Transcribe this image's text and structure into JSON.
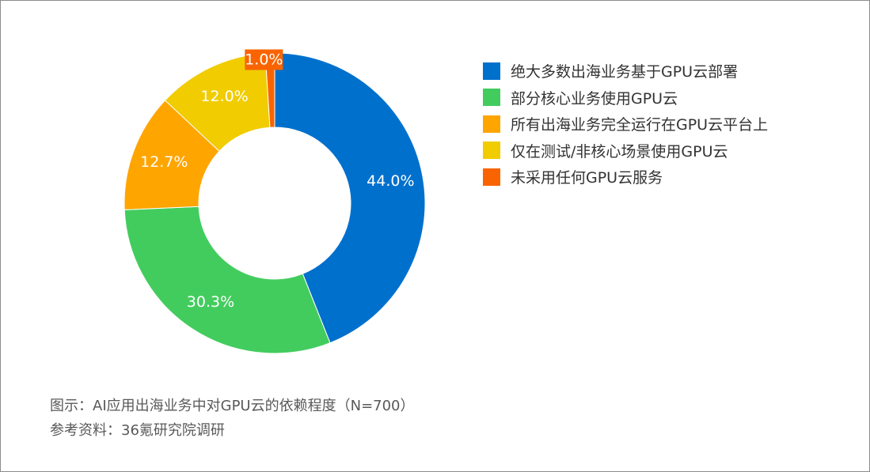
{
  "chart_data": {
    "type": "pie",
    "donut": true,
    "series": [
      {
        "label": "绝大多数出海业务基于GPU云部署",
        "value": 44.0,
        "value_label": "44.0%",
        "color": "#0070cd"
      },
      {
        "label": "部分核心业务使用GPU云",
        "value": 30.3,
        "value_label": "30.3%",
        "color": "#43cc5e"
      },
      {
        "label": "所有出海业务完全运行在GPU云平台上",
        "value": 12.7,
        "value_label": "12.7%",
        "color": "#ffa500"
      },
      {
        "label": "仅在测试/非核心场景使用GPU云",
        "value": 12.0,
        "value_label": "12.0%",
        "color": "#f0cc00"
      },
      {
        "label": "未采用任何GPU云服务",
        "value": 1.0,
        "value_label": "1.0%",
        "color": "#fa6400"
      }
    ],
    "legend_position": "right"
  },
  "caption": {
    "figure": "图示：AI应用出海业务中对GPU云的依赖程度（N=700）",
    "source": "参考资料：36氪研究院调研"
  }
}
